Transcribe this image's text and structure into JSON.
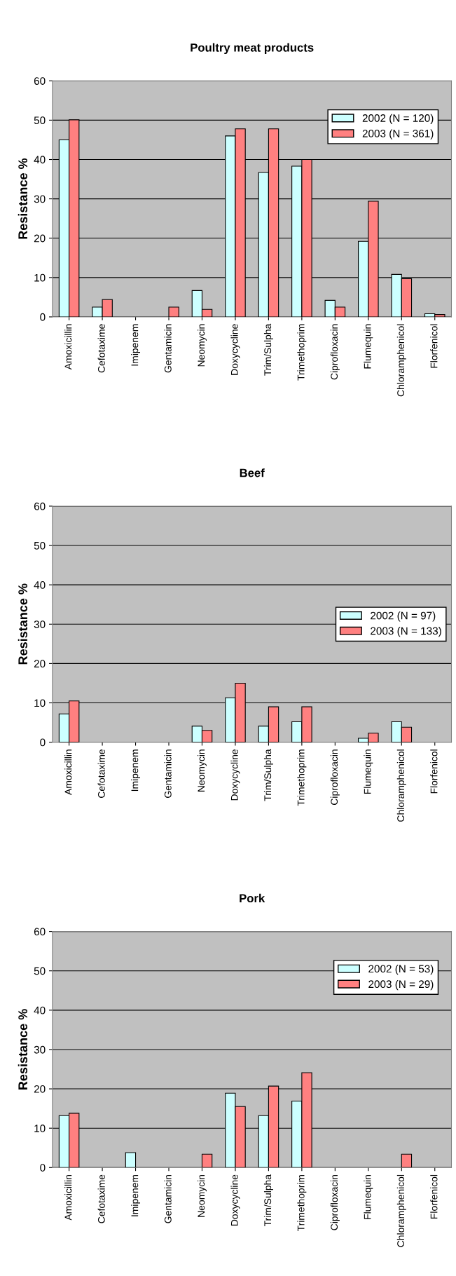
{
  "chart_data": [
    {
      "type": "bar",
      "title": "Poultry meat products",
      "ylabel": "Resistance %",
      "categories": [
        "Amoxicillin",
        "Cefotaxime",
        "Imipenem",
        "Gentamicin",
        "Neomycin",
        "Doxycycline",
        "Trim/Sulpha",
        "Trimethoprim",
        "Ciprofloxacin",
        "Flumequin",
        "Chloramphenicol",
        "Florfenicol"
      ],
      "series": [
        {
          "name": "2002 (N = 120)",
          "color": "#ccffff",
          "values": [
            45,
            2.5,
            0,
            0,
            6.7,
            46,
            36.7,
            38.3,
            4.2,
            19.2,
            10.8,
            0.8
          ]
        },
        {
          "name": "2003 (N = 361)",
          "color": "#ff8080",
          "values": [
            50.1,
            4.4,
            0,
            2.5,
            1.9,
            47.8,
            47.8,
            40,
            2.5,
            29.4,
            9.7,
            0.6
          ]
        }
      ],
      "ylim": [
        0,
        60
      ],
      "yticks": [
        0,
        10,
        20,
        30,
        40,
        50,
        60
      ],
      "grid": "y",
      "legend": "top right"
    },
    {
      "type": "bar",
      "title": "Beef",
      "ylabel": "Resistance %",
      "categories": [
        "Amoxicillin",
        "Cefotaxime",
        "Imipenem",
        "Gentamicin",
        "Neomycin",
        "Doxycycline",
        "Trim/Sulpha",
        "Trimethoprim",
        "Ciprofloxacin",
        "Flumequin",
        "Chloramphenicol",
        "Florfenicol"
      ],
      "series": [
        {
          "name": "2002 (N = 97)",
          "color": "#ccffff",
          "values": [
            7.2,
            0,
            0,
            0,
            4.1,
            11.3,
            4.1,
            5.2,
            0,
            1.0,
            5.2,
            0
          ]
        },
        {
          "name": "2003 (N = 133)",
          "color": "#ff8080",
          "values": [
            10.5,
            0,
            0,
            0,
            3.0,
            15.0,
            9.0,
            9.0,
            0,
            2.3,
            3.8,
            0
          ]
        }
      ],
      "ylim": [
        0,
        60
      ],
      "yticks": [
        0,
        10,
        20,
        30,
        40,
        50,
        60
      ],
      "grid": "y",
      "legend": "right"
    },
    {
      "type": "bar",
      "title": "Pork",
      "ylabel": "Resistance %",
      "categories": [
        "Amoxicillin",
        "Cefotaxime",
        "Imipenem",
        "Gentamicin",
        "Neomycin",
        "Doxycycline",
        "Trim/Sulpha",
        "Trimethoprim",
        "Ciprofloxacin",
        "Flumequin",
        "Chloramphenicol",
        "Florfenicol"
      ],
      "series": [
        {
          "name": "2002 (N = 53)",
          "color": "#ccffff",
          "values": [
            13.2,
            0,
            3.8,
            0,
            0,
            18.9,
            13.2,
            16.9,
            0,
            0,
            0,
            0
          ]
        },
        {
          "name": "2003 (N = 29)",
          "color": "#ff8080",
          "values": [
            13.8,
            0,
            0,
            0,
            3.4,
            15.5,
            20.7,
            24.1,
            0,
            0,
            3.4,
            0
          ]
        }
      ],
      "ylim": [
        0,
        60
      ],
      "yticks": [
        0,
        10,
        20,
        30,
        40,
        50,
        60
      ],
      "grid": "y",
      "legend": "top right"
    }
  ]
}
